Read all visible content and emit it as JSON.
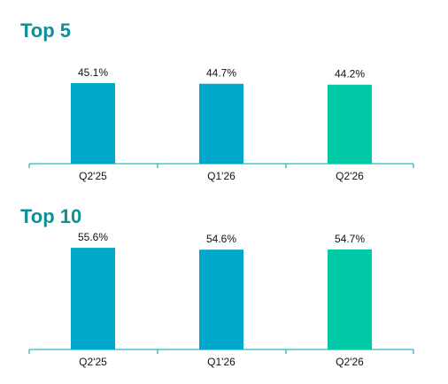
{
  "chart_data": [
    {
      "type": "bar",
      "title": "Top 5",
      "categories": [
        "Q2'25",
        "Q1'26",
        "Q2'26"
      ],
      "values": [
        45.1,
        44.7,
        44.2
      ],
      "value_labels": [
        "45.1%",
        "44.7%",
        "44.2%"
      ],
      "bar_colors": [
        "#00a8cc",
        "#00a8cc",
        "#00c9a7"
      ],
      "ylim": [
        0,
        50
      ],
      "grid": false,
      "xlabel": "",
      "ylabel": ""
    },
    {
      "type": "bar",
      "title": "Top 10",
      "categories": [
        "Q2'25",
        "Q1'26",
        "Q2'26"
      ],
      "values": [
        55.6,
        54.6,
        54.7
      ],
      "value_labels": [
        "55.6%",
        "54.6%",
        "54.7%"
      ],
      "bar_colors": [
        "#00a8cc",
        "#00a8cc",
        "#00c9a7"
      ],
      "ylim": [
        0,
        60
      ],
      "grid": false,
      "xlabel": "",
      "ylabel": ""
    }
  ],
  "colors": {
    "title": "#0e8f95",
    "axis": "#2bb6c4"
  }
}
